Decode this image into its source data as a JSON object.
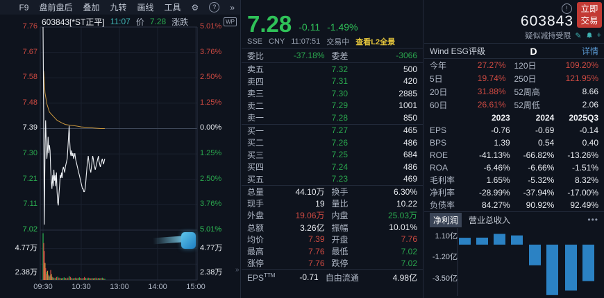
{
  "icons": {
    "gear": "⚙",
    "help": "?",
    "more": "»",
    "edit": "✎",
    "add": "+",
    "alert": "!",
    "wp": "WP",
    "collapse": "»",
    "tabs_more": "•••"
  },
  "toolbar": {
    "items": [
      "F9",
      "盘前盘后",
      "叠加",
      "九转",
      "画线",
      "工具"
    ]
  },
  "info": {
    "code_name": "603843[*ST正平]",
    "time": "11:07",
    "price_label": "价",
    "price": "7.28",
    "change_label": "涨跌"
  },
  "axes": {
    "price_left": [
      "7.76",
      "7.67",
      "7.58",
      "7.48",
      "7.39",
      "7.30",
      "7.21",
      "7.11",
      "7.02"
    ],
    "pct_right": [
      "5.01%",
      "3.76%",
      "2.50%",
      "1.25%",
      "0.00%",
      "1.25%",
      "2.50%",
      "3.76%",
      "5.01%"
    ],
    "vol_left": [
      "7.02",
      "4.77万",
      "2.38万"
    ],
    "vol_right": [
      "5.01%",
      "4.77万",
      "2.38万"
    ],
    "time": [
      "09:30",
      "10:30",
      "13:00",
      "14:00",
      "15:00"
    ]
  },
  "quote": {
    "price": "7.28",
    "change": "-0.11",
    "pct": "-1.49%",
    "exchange": "SSE",
    "currency": "CNY",
    "time": "11:07:51",
    "status": "交易中",
    "l2": "查看L2全景"
  },
  "board": {
    "weibi_label": "委比",
    "weibi": "-37.18%",
    "weicha_label": "委差",
    "weicha": "-3066",
    "asks": [
      [
        "卖五",
        "7.32",
        "500"
      ],
      [
        "卖四",
        "7.31",
        "420"
      ],
      [
        "卖三",
        "7.30",
        "2885"
      ],
      [
        "卖二",
        "7.29",
        "1001"
      ],
      [
        "卖一",
        "7.28",
        "850"
      ]
    ],
    "bids": [
      [
        "买一",
        "7.27",
        "465"
      ],
      [
        "买二",
        "7.26",
        "486"
      ],
      [
        "买三",
        "7.25",
        "684"
      ],
      [
        "买四",
        "7.24",
        "486"
      ],
      [
        "买五",
        "7.23",
        "469"
      ]
    ]
  },
  "stats": [
    [
      "总量",
      "44.10万",
      "w",
      "换手",
      "6.30%",
      "w"
    ],
    [
      "现手",
      "19",
      "w",
      "量比",
      "10.22",
      "w"
    ],
    [
      "外盘",
      "19.06万",
      "r",
      "内盘",
      "25.03万",
      "g"
    ],
    [
      "总额",
      "3.26亿",
      "w",
      "振幅",
      "10.01%",
      "w"
    ],
    [
      "均价",
      "7.39",
      "r",
      "开盘",
      "7.76",
      "r"
    ],
    [
      "最高",
      "7.76",
      "r",
      "最低",
      "7.02",
      "g"
    ],
    [
      "涨停",
      "7.76",
      "r",
      "跌停",
      "7.02",
      "g"
    ]
  ],
  "eps": {
    "label": "EPS",
    "sup": "TTM",
    "value": "-0.71",
    "label2": "自由流通",
    "value2": "4.98亿"
  },
  "right": {
    "trade_btn": "立即交易",
    "code": "603843",
    "alert": "疑似减持受限",
    "esg_label": "Wind ESG评级",
    "esg_rating": "D",
    "esg_detail": "详情",
    "returns": [
      [
        "今年",
        "27.27%",
        "r",
        "120日",
        "109.20%",
        "r"
      ],
      [
        "5日",
        "19.74%",
        "r",
        "250日",
        "121.95%",
        "r"
      ],
      [
        "20日",
        "31.88%",
        "r",
        "52周高",
        "8.66",
        "w"
      ],
      [
        "60日",
        "26.61%",
        "r",
        "52周低",
        "2.06",
        "w"
      ]
    ],
    "fin_years": [
      "2023",
      "2024",
      "2025Q3"
    ],
    "fin_rows": [
      [
        "EPS",
        "-0.76",
        "-0.69",
        "-0.14"
      ],
      [
        "BPS",
        "1.39",
        "0.54",
        "0.40"
      ],
      [
        "ROE",
        "-41.13%",
        "-66.82%",
        "-13.26%"
      ],
      [
        "ROA",
        "-6.46%",
        "-6.66%",
        "-1.51%"
      ],
      [
        "毛利率",
        "1.65%",
        "-5.32%",
        "8.32%"
      ],
      [
        "净利率",
        "-28.99%",
        "-37.94%",
        "-17.00%"
      ],
      [
        "负债率",
        "84.27%",
        "90.92%",
        "92.49%"
      ]
    ],
    "tabs": [
      "净利润",
      "营业总收入"
    ]
  },
  "colors": {
    "red": "#cf4a42",
    "green": "#2aa84e",
    "bright_green": "#2fc158",
    "teal": "#3fb3b3",
    "yellow": "#e3c43c",
    "avg_line": "#c9973f",
    "bar_blue": "#2b82c4",
    "link_blue": "#5b9bd5",
    "btn_red": "#c23a34"
  },
  "chart_data": [
    {
      "type": "line",
      "name": "intraday-price",
      "title": "603843 *ST正平 分时",
      "x_unit": "minutes_since_09:30",
      "prev_close": 7.39,
      "open": 7.76,
      "high": 7.76,
      "low": 7.02,
      "last": 7.28,
      "y_axis_prices": [
        7.76,
        7.67,
        7.58,
        7.48,
        7.39,
        7.3,
        7.21,
        7.11,
        7.02
      ],
      "y_axis_pct": [
        "5.01%",
        "3.76%",
        "2.50%",
        "1.25%",
        "0.00%",
        "-1.25%",
        "-2.50%",
        "-3.76%",
        "-5.01%"
      ],
      "x_ticks": [
        "09:30",
        "10:30",
        "13:00",
        "14:00",
        "15:00"
      ],
      "price_points": [
        [
          0,
          7.76
        ],
        [
          1,
          7.45
        ],
        [
          2,
          7.04
        ],
        [
          3,
          7.3
        ],
        [
          4,
          7.42
        ],
        [
          5,
          7.34
        ],
        [
          6,
          7.28
        ],
        [
          7,
          7.31
        ],
        [
          8,
          7.36
        ],
        [
          9,
          7.3
        ],
        [
          10,
          7.33
        ],
        [
          11,
          7.31
        ],
        [
          12,
          7.24
        ],
        [
          13,
          7.2
        ],
        [
          14,
          7.17
        ],
        [
          15,
          7.22
        ],
        [
          16,
          7.18
        ],
        [
          17,
          7.24
        ],
        [
          18,
          7.2
        ],
        [
          19,
          7.22
        ],
        [
          20,
          7.18
        ],
        [
          21,
          7.23
        ],
        [
          22,
          7.16
        ],
        [
          23,
          7.12
        ],
        [
          24,
          7.11
        ],
        [
          25,
          7.15
        ],
        [
          26,
          7.18
        ],
        [
          27,
          7.22
        ],
        [
          28,
          7.21
        ],
        [
          29,
          7.23
        ],
        [
          30,
          7.21
        ],
        [
          31,
          7.24
        ],
        [
          32,
          7.25
        ],
        [
          33,
          7.24
        ],
        [
          34,
          7.23
        ],
        [
          35,
          7.25
        ],
        [
          36,
          7.26
        ],
        [
          37,
          7.27
        ],
        [
          38,
          7.28
        ],
        [
          39,
          7.32
        ],
        [
          40,
          7.36
        ],
        [
          41,
          7.4
        ],
        [
          42,
          7.34
        ],
        [
          43,
          7.3
        ],
        [
          44,
          7.29
        ],
        [
          45,
          7.31
        ],
        [
          46,
          7.29
        ],
        [
          47,
          7.3
        ],
        [
          48,
          7.28
        ],
        [
          49,
          7.29
        ],
        [
          50,
          7.3
        ],
        [
          51,
          7.28
        ],
        [
          52,
          7.27
        ],
        [
          53,
          7.26
        ],
        [
          54,
          7.25
        ],
        [
          55,
          7.24
        ],
        [
          56,
          7.23
        ],
        [
          57,
          7.22
        ],
        [
          58,
          7.21
        ],
        [
          59,
          7.2
        ],
        [
          60,
          7.19
        ],
        [
          61,
          7.18
        ],
        [
          62,
          7.17
        ],
        [
          63,
          7.17
        ],
        [
          64,
          7.16
        ],
        [
          65,
          7.16
        ],
        [
          66,
          7.17
        ],
        [
          67,
          7.19
        ],
        [
          68,
          7.22
        ],
        [
          69,
          7.25
        ],
        [
          70,
          7.27
        ],
        [
          71,
          7.29
        ],
        [
          72,
          7.27
        ],
        [
          73,
          7.25
        ],
        [
          74,
          7.24
        ],
        [
          75,
          7.23
        ],
        [
          76,
          7.25
        ],
        [
          77,
          7.27
        ],
        [
          78,
          7.29
        ],
        [
          79,
          7.28
        ],
        [
          80,
          7.26
        ],
        [
          81,
          7.25
        ],
        [
          82,
          7.24
        ],
        [
          83,
          7.25
        ],
        [
          84,
          7.26
        ],
        [
          85,
          7.27
        ],
        [
          86,
          7.28
        ],
        [
          87,
          7.29
        ],
        [
          88,
          7.27
        ],
        [
          89,
          7.26
        ],
        [
          90,
          7.25
        ],
        [
          91,
          7.26
        ],
        [
          92,
          7.27
        ],
        [
          93,
          7.28
        ],
        [
          94,
          7.27
        ],
        [
          95,
          7.26
        ],
        [
          96,
          7.27
        ],
        [
          97,
          7.28
        ]
      ],
      "avg_points": [
        [
          1,
          7.6
        ],
        [
          3,
          7.52
        ],
        [
          6,
          7.48
        ],
        [
          10,
          7.45
        ],
        [
          14,
          7.44
        ],
        [
          18,
          7.43
        ],
        [
          22,
          7.42
        ],
        [
          26,
          7.415
        ],
        [
          30,
          7.41
        ],
        [
          35,
          7.405
        ],
        [
          40,
          7.403
        ],
        [
          45,
          7.401
        ],
        [
          50,
          7.4
        ],
        [
          55,
          7.398
        ],
        [
          60,
          7.396
        ],
        [
          65,
          7.395
        ],
        [
          70,
          7.394
        ],
        [
          75,
          7.393
        ],
        [
          80,
          7.392
        ],
        [
          85,
          7.391
        ],
        [
          90,
          7.39
        ],
        [
          97,
          7.39
        ]
      ]
    },
    {
      "type": "bar",
      "name": "intraday-volume",
      "unit": "万",
      "x_unit": "minutes_since_09:30",
      "y_labels": [
        "4.77万",
        "2.38万"
      ],
      "points": [
        [
          0,
          7.1,
          "g"
        ],
        [
          1,
          5.6,
          "r"
        ],
        [
          2,
          4.4,
          "r"
        ],
        [
          3,
          2.6,
          "o"
        ],
        [
          4,
          1.8,
          "r"
        ],
        [
          5,
          1.2,
          "g"
        ],
        [
          6,
          0.9,
          "r"
        ],
        [
          7,
          1.4,
          "o"
        ],
        [
          8,
          0.8,
          "r"
        ],
        [
          9,
          0.6,
          "g"
        ],
        [
          10,
          0.5,
          "r"
        ],
        [
          11,
          0.7,
          "g"
        ],
        [
          12,
          1.5,
          "r"
        ],
        [
          13,
          0.9,
          "o"
        ],
        [
          14,
          0.5,
          "r"
        ],
        [
          15,
          0.4,
          "g"
        ],
        [
          17,
          0.35,
          "r"
        ],
        [
          19,
          0.3,
          "g"
        ],
        [
          21,
          0.45,
          "r"
        ],
        [
          23,
          0.5,
          "g"
        ],
        [
          25,
          0.35,
          "r"
        ],
        [
          27,
          0.3,
          "g"
        ],
        [
          29,
          0.25,
          "r"
        ],
        [
          31,
          0.3,
          "g"
        ],
        [
          33,
          0.4,
          "g"
        ],
        [
          35,
          0.3,
          "r"
        ],
        [
          37,
          0.25,
          "g"
        ],
        [
          39,
          0.35,
          "r"
        ],
        [
          41,
          0.6,
          "g"
        ],
        [
          43,
          0.45,
          "r"
        ],
        [
          45,
          0.3,
          "g"
        ],
        [
          47,
          0.25,
          "r"
        ],
        [
          49,
          0.3,
          "g"
        ],
        [
          51,
          0.35,
          "r"
        ],
        [
          53,
          0.25,
          "g"
        ],
        [
          55,
          0.3,
          "r"
        ],
        [
          57,
          0.4,
          "g"
        ],
        [
          59,
          0.3,
          "r"
        ],
        [
          61,
          0.25,
          "g"
        ],
        [
          63,
          0.3,
          "r"
        ],
        [
          65,
          0.45,
          "r"
        ],
        [
          67,
          0.3,
          "g"
        ],
        [
          69,
          0.25,
          "g"
        ],
        [
          71,
          0.35,
          "r"
        ],
        [
          73,
          0.3,
          "g"
        ],
        [
          75,
          0.25,
          "r"
        ],
        [
          77,
          0.3,
          "g"
        ],
        [
          79,
          0.25,
          "r"
        ],
        [
          81,
          0.3,
          "g"
        ],
        [
          83,
          0.35,
          "r"
        ],
        [
          85,
          0.25,
          "g"
        ],
        [
          87,
          0.3,
          "r"
        ],
        [
          89,
          0.25,
          "g"
        ],
        [
          91,
          0.3,
          "r"
        ],
        [
          93,
          0.35,
          "g"
        ],
        [
          95,
          0.25,
          "r"
        ],
        [
          97,
          0.2,
          "g"
        ]
      ]
    },
    {
      "type": "bar",
      "name": "净利润",
      "unit": "亿",
      "y_labels": [
        "1.10亿",
        "-1.20亿",
        "-3.50亿"
      ],
      "values": [
        0.76,
        0.78,
        1.19,
        1.02,
        -2.29,
        -5.6,
        -5.1,
        -4.05
      ]
    }
  ]
}
